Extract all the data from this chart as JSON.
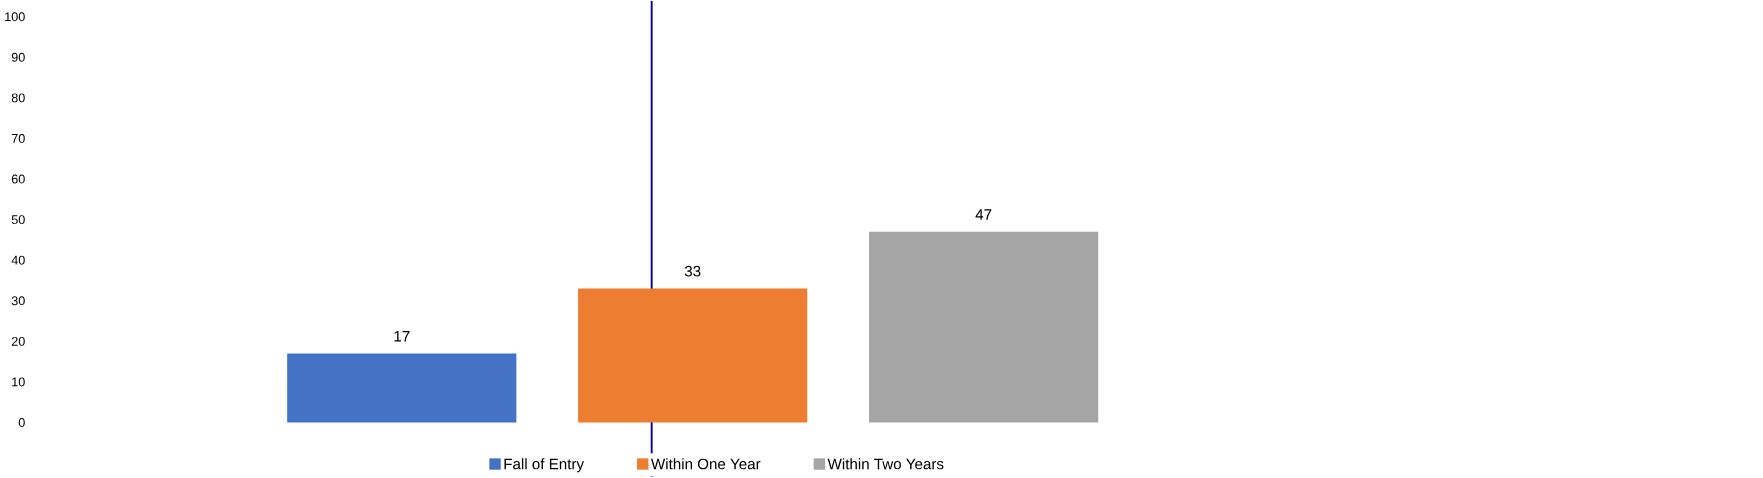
{
  "chart_data": {
    "type": "bar",
    "categories": [
      null
    ],
    "series": [
      {
        "name": "Fall of Entry",
        "color": "#4472c4",
        "values": [
          17
        ]
      },
      {
        "name": "Within One Year",
        "color": "#ed7d31",
        "values": [
          33
        ]
      },
      {
        "name": "Within Two Years",
        "color": "#a5a5a5",
        "values": [
          47
        ]
      }
    ],
    "ylim": [
      0,
      100
    ],
    "yticks": [
      0,
      10,
      20,
      30,
      40,
      50,
      60,
      70,
      80,
      90,
      100
    ],
    "data_labels": true,
    "grid": false,
    "legend": "bottom"
  }
}
